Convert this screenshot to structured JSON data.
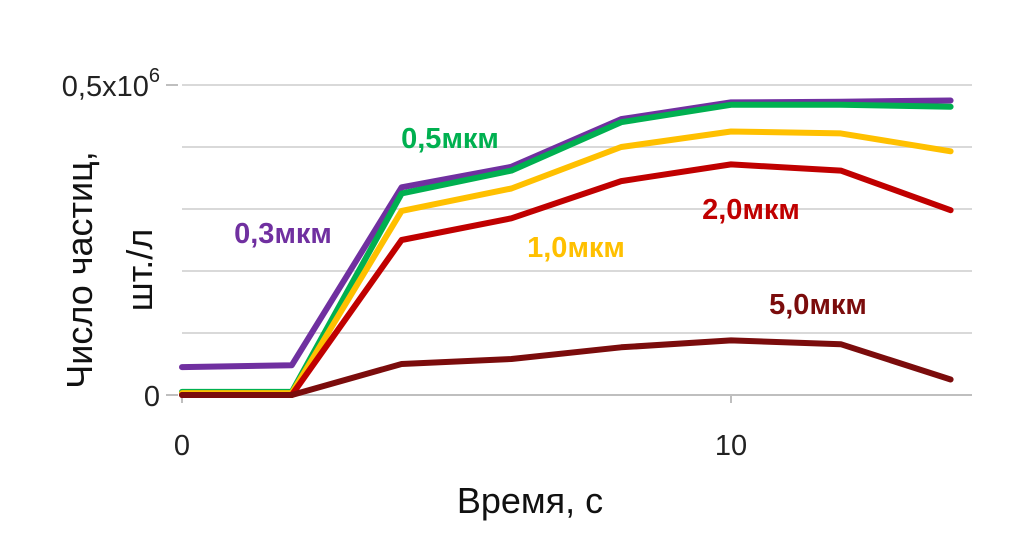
{
  "chart_data": {
    "type": "line",
    "xlabel": "Время, с",
    "ylabel_line1": "Число частиц,",
    "ylabel_line2": "шт./л",
    "xlim": [
      0,
      14
    ],
    "ylim": [
      0,
      500000
    ],
    "x_ticks": [
      {
        "value": 0,
        "label": "0"
      },
      {
        "value": 10,
        "label": "10"
      }
    ],
    "y_ticks": [
      {
        "value": 0,
        "label": "0"
      },
      {
        "value": 500000,
        "label": "0,5x10",
        "sup": "6"
      }
    ],
    "y_gridlines": [
      100000,
      200000,
      300000,
      400000,
      500000
    ],
    "x": [
      0,
      2,
      4,
      6,
      8,
      10,
      12,
      14
    ],
    "series": [
      {
        "name": "0,3мкм",
        "color": "#7030a0",
        "values": [
          45000,
          48000,
          335000,
          368000,
          445000,
          472000,
          473000,
          475000
        ]
      },
      {
        "name": "0,5мкм",
        "color": "#00b050",
        "values": [
          5000,
          5000,
          325000,
          362000,
          440000,
          468000,
          468000,
          465000
        ]
      },
      {
        "name": "1,0мкм",
        "color": "#ffc000",
        "values": [
          3000,
          3000,
          297000,
          333000,
          400000,
          425000,
          422000,
          393000
        ]
      },
      {
        "name": "2,0мкм",
        "color": "#c00000",
        "values": [
          0,
          0,
          250000,
          285000,
          345000,
          372000,
          362000,
          298000
        ]
      },
      {
        "name": "5,0мкм",
        "color": "#7b0c0c",
        "values": [
          0,
          0,
          50000,
          58000,
          77000,
          88000,
          82000,
          25000
        ]
      }
    ]
  }
}
